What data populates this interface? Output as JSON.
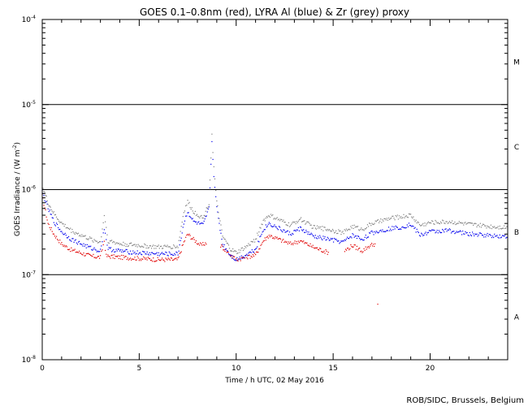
{
  "chart_data": {
    "type": "scatter",
    "title": "GOES 0.1–0.8nm (red), LYRA Al (blue) & Zr (grey) proxy",
    "xlabel": "Time / h UTC, 02 May 2016",
    "ylabel": "GOES Irradiance / (W m",
    "ylabel_exp": "-2",
    "ylabel_close": ")",
    "xlim": [
      0,
      24
    ],
    "ylim": [
      1e-08,
      0.0001
    ],
    "yscale": "log",
    "x_ticks": [
      {
        "value": 0,
        "label": "0"
      },
      {
        "value": 5,
        "label": "5"
      },
      {
        "value": 10,
        "label": "10"
      },
      {
        "value": 15,
        "label": "15"
      },
      {
        "value": 20,
        "label": "20"
      }
    ],
    "y_ticks": [
      {
        "value": 0.0001,
        "base": "10",
        "exp": "-4"
      },
      {
        "value": 1e-05,
        "base": "10",
        "exp": "-5"
      },
      {
        "value": 1e-06,
        "base": "10",
        "exp": "-6"
      },
      {
        "value": 1e-07,
        "base": "10",
        "exp": "-7"
      },
      {
        "value": 1e-08,
        "base": "10",
        "exp": "-8"
      }
    ],
    "flare_levels": [
      1e-05,
      1e-06,
      1e-07
    ],
    "flare_classes": [
      {
        "label": "M",
        "value": 3.16e-05
      },
      {
        "label": "C",
        "value": 3.16e-06
      },
      {
        "label": "B",
        "value": 3.16e-07
      },
      {
        "label": "A",
        "value": 3.16e-08
      }
    ],
    "series": [
      {
        "color": "#e00000",
        "points": [
          [
            0,
            8.5e-07
          ],
          [
            0.3,
            4e-07
          ],
          [
            0.6,
            3e-07
          ],
          [
            1.0,
            2.3e-07
          ],
          [
            1.5,
            1.95e-07
          ],
          [
            2.0,
            1.8e-07
          ],
          [
            2.5,
            1.65e-07
          ],
          [
            3.0,
            1.6e-07
          ],
          [
            3.2,
            2.5e-07
          ],
          [
            3.3,
            1.65e-07
          ],
          [
            4.0,
            1.6e-07
          ],
          [
            5.0,
            1.55e-07
          ],
          [
            6.0,
            1.5e-07
          ],
          [
            7.0,
            1.5e-07
          ],
          [
            7.3,
            2.4e-07
          ],
          [
            7.5,
            3e-07
          ],
          [
            7.8,
            2.6e-07
          ],
          [
            8.2,
            2.2e-07
          ],
          [
            8.5,
            2.4e-07
          ]
        ]
      },
      {
        "color": "#e00000",
        "points": [
          [
            9.2,
            2.2e-07
          ],
          [
            9.6,
            1.8e-07
          ],
          [
            10.0,
            1.5e-07
          ],
          [
            10.5,
            1.6e-07
          ],
          [
            11.0,
            1.7e-07
          ],
          [
            11.4,
            2.5e-07
          ],
          [
            11.7,
            2.9e-07
          ],
          [
            12.2,
            2.6e-07
          ],
          [
            12.8,
            2.3e-07
          ],
          [
            13.3,
            2.5e-07
          ],
          [
            14.0,
            2.1e-07
          ],
          [
            14.8,
            1.8e-07
          ]
        ]
      },
      {
        "color": "#e00000",
        "points": [
          [
            15.6,
            1.9e-07
          ],
          [
            16.0,
            2.2e-07
          ],
          [
            16.5,
            1.9e-07
          ],
          [
            16.9,
            2.2e-07
          ],
          [
            17.2,
            2.3e-07
          ]
        ]
      },
      {
        "color": "#e00000",
        "points": [
          [
            17.3,
            4.5e-08
          ]
        ]
      },
      {
        "color": "#0000ee",
        "points": [
          [
            0,
            9.5e-07
          ],
          [
            0.3,
            6e-07
          ],
          [
            0.6,
            4.2e-07
          ],
          [
            1.0,
            3.2e-07
          ],
          [
            1.5,
            2.6e-07
          ],
          [
            2.0,
            2.3e-07
          ],
          [
            2.5,
            2.05e-07
          ],
          [
            3.0,
            1.9e-07
          ],
          [
            3.2,
            3.5e-07
          ],
          [
            3.4,
            2e-07
          ],
          [
            4.0,
            1.9e-07
          ],
          [
            5.0,
            1.8e-07
          ],
          [
            6.0,
            1.75e-07
          ],
          [
            7.0,
            1.75e-07
          ],
          [
            7.3,
            4e-07
          ],
          [
            7.5,
            5.5e-07
          ],
          [
            7.8,
            4.2e-07
          ],
          [
            8.3,
            3.8e-07
          ],
          [
            8.6,
            6e-07
          ],
          [
            8.75,
            3.6e-06
          ],
          [
            8.85,
            1.5e-06
          ],
          [
            9.0,
            6e-07
          ],
          [
            9.3,
            2.3e-07
          ],
          [
            9.7,
            1.7e-07
          ],
          [
            10.0,
            1.5e-07
          ],
          [
            10.5,
            1.7e-07
          ],
          [
            11.0,
            2e-07
          ],
          [
            11.4,
            3.4e-07
          ],
          [
            11.7,
            4e-07
          ],
          [
            12.3,
            3.4e-07
          ],
          [
            12.8,
            3e-07
          ],
          [
            13.3,
            3.5e-07
          ],
          [
            14.0,
            2.8e-07
          ],
          [
            14.8,
            2.6e-07
          ],
          [
            15.5,
            2.4e-07
          ],
          [
            16.0,
            2.9e-07
          ],
          [
            16.5,
            2.6e-07
          ],
          [
            17.0,
            3.1e-07
          ],
          [
            18.0,
            3.5e-07
          ],
          [
            18.5,
            3.6e-07
          ],
          [
            19.0,
            3.9e-07
          ],
          [
            19.5,
            2.9e-07
          ],
          [
            20.0,
            3.2e-07
          ],
          [
            21.0,
            3.3e-07
          ],
          [
            22.0,
            3e-07
          ],
          [
            23.0,
            2.9e-07
          ],
          [
            24.0,
            2.8e-07
          ]
        ]
      },
      {
        "color": "#808080",
        "points": [
          [
            0,
            1.1e-06
          ],
          [
            0.3,
            7e-07
          ],
          [
            0.6,
            5.2e-07
          ],
          [
            1.0,
            4e-07
          ],
          [
            1.5,
            3.3e-07
          ],
          [
            2.0,
            2.9e-07
          ],
          [
            2.5,
            2.6e-07
          ],
          [
            3.0,
            2.4e-07
          ],
          [
            3.2,
            5e-07
          ],
          [
            3.4,
            2.5e-07
          ],
          [
            4.0,
            2.3e-07
          ],
          [
            5.0,
            2.2e-07
          ],
          [
            6.0,
            2.1e-07
          ],
          [
            7.0,
            2.15e-07
          ],
          [
            7.3,
            5.5e-07
          ],
          [
            7.5,
            7.2e-07
          ],
          [
            7.8,
            5.5e-07
          ],
          [
            8.3,
            4.6e-07
          ],
          [
            8.6,
            7e-07
          ],
          [
            8.75,
            4.5e-06
          ],
          [
            8.85,
            1.8e-06
          ],
          [
            9.0,
            7e-07
          ],
          [
            9.3,
            2.8e-07
          ],
          [
            9.7,
            2e-07
          ],
          [
            10.0,
            1.8e-07
          ],
          [
            10.5,
            2.1e-07
          ],
          [
            11.0,
            2.6e-07
          ],
          [
            11.4,
            4.3e-07
          ],
          [
            11.7,
            5e-07
          ],
          [
            12.3,
            4.3e-07
          ],
          [
            12.8,
            3.8e-07
          ],
          [
            13.3,
            4.5e-07
          ],
          [
            14.0,
            3.6e-07
          ],
          [
            14.8,
            3.4e-07
          ],
          [
            15.5,
            3.1e-07
          ],
          [
            16.0,
            3.7e-07
          ],
          [
            16.5,
            3.4e-07
          ],
          [
            17.0,
            4e-07
          ],
          [
            18.0,
            4.6e-07
          ],
          [
            18.5,
            4.8e-07
          ],
          [
            19.0,
            5e-07
          ],
          [
            19.5,
            3.8e-07
          ],
          [
            20.0,
            4.1e-07
          ],
          [
            21.0,
            4.2e-07
          ],
          [
            22.0,
            3.9e-07
          ],
          [
            23.0,
            3.7e-07
          ],
          [
            24.0,
            3.6e-07
          ]
        ]
      }
    ]
  },
  "credit": "ROB/SIDC, Brussels, Belgium"
}
